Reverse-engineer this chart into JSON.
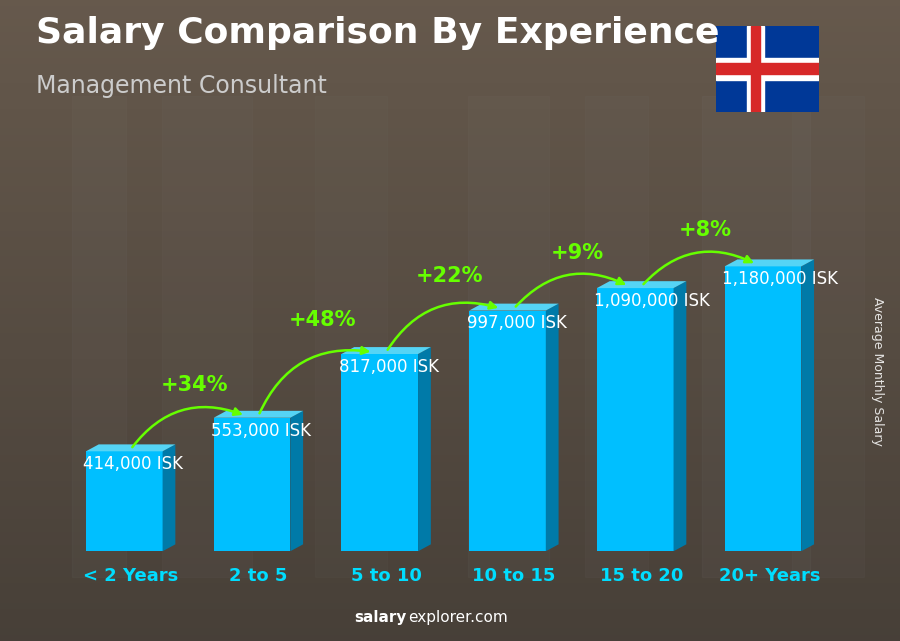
{
  "title": "Salary Comparison By Experience",
  "subtitle": "Management Consultant",
  "ylabel": "Average Monthly Salary",
  "watermark_bold": "salary",
  "watermark_normal": "explorer.com",
  "categories": [
    "< 2 Years",
    "2 to 5",
    "5 to 10",
    "10 to 15",
    "15 to 20",
    "20+ Years"
  ],
  "values": [
    414000,
    553000,
    817000,
    997000,
    1090000,
    1180000
  ],
  "value_labels": [
    "414,000 ISK",
    "553,000 ISK",
    "817,000 ISK",
    "997,000 ISK",
    "1,090,000 ISK",
    "1,180,000 ISK"
  ],
  "pct_changes": [
    "+34%",
    "+48%",
    "+22%",
    "+9%",
    "+8%"
  ],
  "bar_color_main": "#00BFFF",
  "bar_color_dark": "#007AA8",
  "bar_color_top": "#55D4F5",
  "green_color": "#66FF00",
  "title_color": "#FFFFFF",
  "subtitle_color": "#CCCCCC",
  "label_color": "#FFFFFF",
  "pct_color": "#66FF00",
  "bg_dark": "#3a3530",
  "bg_mid": "#5a5248",
  "category_color": "#00DDFF",
  "title_fontsize": 26,
  "subtitle_fontsize": 17,
  "label_fontsize": 12,
  "pct_fontsize": 15,
  "cat_fontsize": 13,
  "watermark_fontsize": 11
}
